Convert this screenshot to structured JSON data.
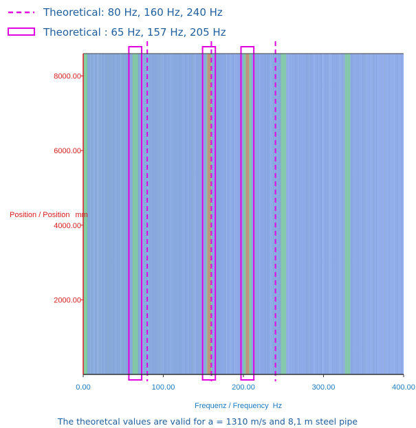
{
  "chart_data": {
    "type": "heatmap",
    "title": "",
    "xlabel": "Frequenz / Frequency",
    "xunit": "Hz",
    "ylabel": "Position / Position",
    "yunit": "mm",
    "xlim": [
      0,
      400
    ],
    "ylim": [
      0,
      8600
    ],
    "x_ticks": [
      "0.00",
      "100.00",
      "200.00",
      "300.00",
      "400.00"
    ],
    "y_ticks": [
      "2000.00",
      "4000.00",
      "6000.00",
      "8000.00"
    ],
    "legend": {
      "dashed_label": "Theoretical: 80 Hz, 160 Hz, 240 Hz",
      "box_label": "Theoretical : 65 Hz, 157 Hz, 205 Hz"
    },
    "dashed_lines_hz": [
      80,
      160,
      240
    ],
    "box_bands_hz": [
      [
        57,
        73
      ],
      [
        149,
        165
      ],
      [
        197,
        213
      ]
    ],
    "colored_bands_hz": [
      65,
      157,
      205,
      250,
      330
    ],
    "caption": "The theoretcal values are valid for a = 1310 m/s and 8,1 m steel pipe",
    "colors": {
      "background": "#8eaee8",
      "green": "#7fe07a",
      "red": "#f06a5a",
      "marker": "#e000e0",
      "axis_text": "#1a7ac2",
      "y_axis_text": "#d81b1b"
    }
  }
}
